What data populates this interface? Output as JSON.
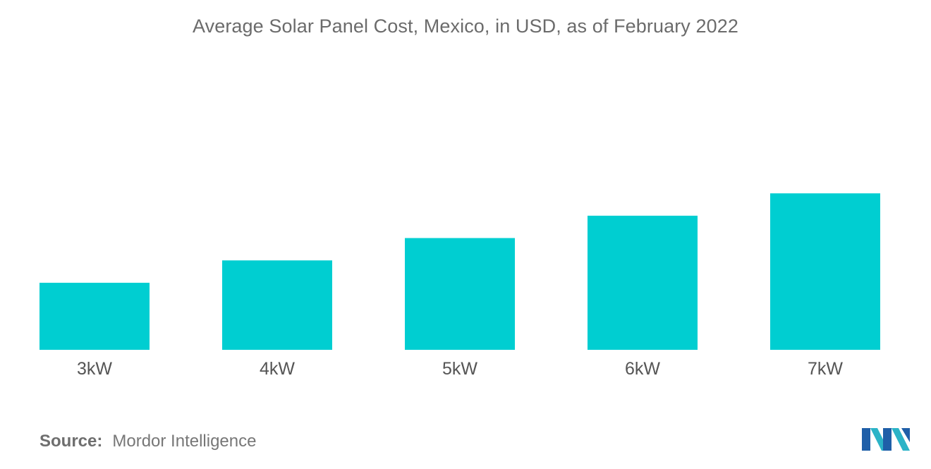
{
  "chart_data": {
    "type": "bar",
    "title": "Average Solar Panel Cost, Mexico, in USD, as of February 2022",
    "categories": [
      "3kW",
      "4kW",
      "5kW",
      "6kW",
      "7kW"
    ],
    "values": [
      3000,
      4000,
      5000,
      6000,
      7000
    ],
    "xlabel": "",
    "ylabel": "",
    "ylim": [
      0,
      13000
    ],
    "grid": false,
    "legend": "none",
    "bar_color": "#00CED1"
  },
  "source": {
    "label": "Source:",
    "text": "Mordor Intelligence"
  },
  "logo": {
    "icon": "mordor-intelligence-logo-icon",
    "colors": [
      "#1F5FA8",
      "#2BB3C7"
    ]
  }
}
